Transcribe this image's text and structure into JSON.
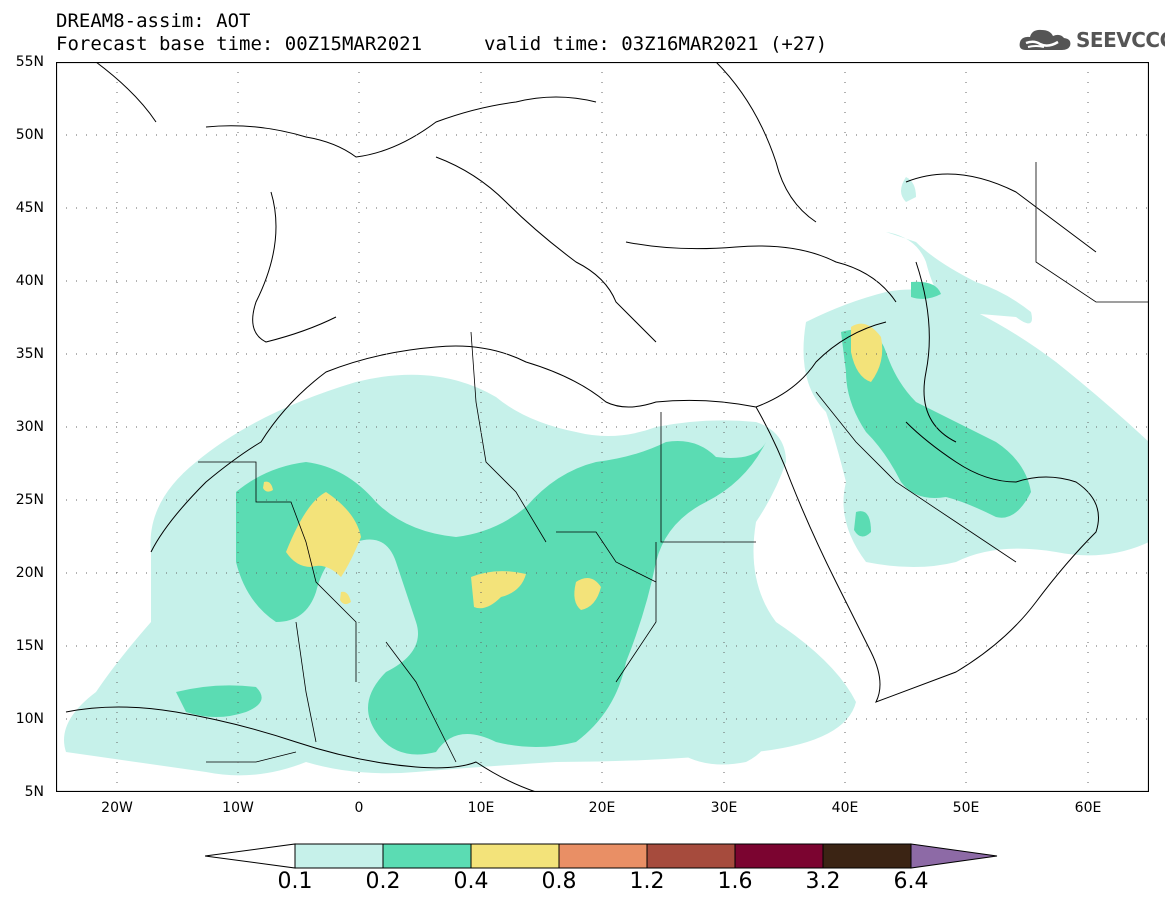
{
  "header": {
    "line1": "DREAM8-assim: AOT",
    "line2": "Forecast base time: 00Z15MAR2021",
    "line3": "valid time: 03Z16MAR2021 (+27)"
  },
  "logo": {
    "text": "SEEVCCC",
    "icon": "cloud-icon"
  },
  "map": {
    "lat_labels": [
      "55N",
      "50N",
      "45N",
      "40N",
      "35N",
      "30N",
      "25N",
      "20N",
      "15N",
      "10N",
      "5N"
    ],
    "lon_labels": [
      "20W",
      "10W",
      "0",
      "10E",
      "20E",
      "30E",
      "40E",
      "50E",
      "60E"
    ],
    "extent": {
      "lon": [
        -25,
        65
      ],
      "lat": [
        5,
        55
      ]
    }
  },
  "colorbar": {
    "labels": [
      "0.1",
      "0.2",
      "0.4",
      "0.8",
      "1.2",
      "1.6",
      "3.2",
      "6.4"
    ],
    "colors": [
      "#ffffff",
      "#c6f1ea",
      "#5bdcb3",
      "#f3e37a",
      "#e98f65",
      "#a64b3d",
      "#7b0430",
      "#3b2414",
      "#8d6aa6"
    ]
  }
}
